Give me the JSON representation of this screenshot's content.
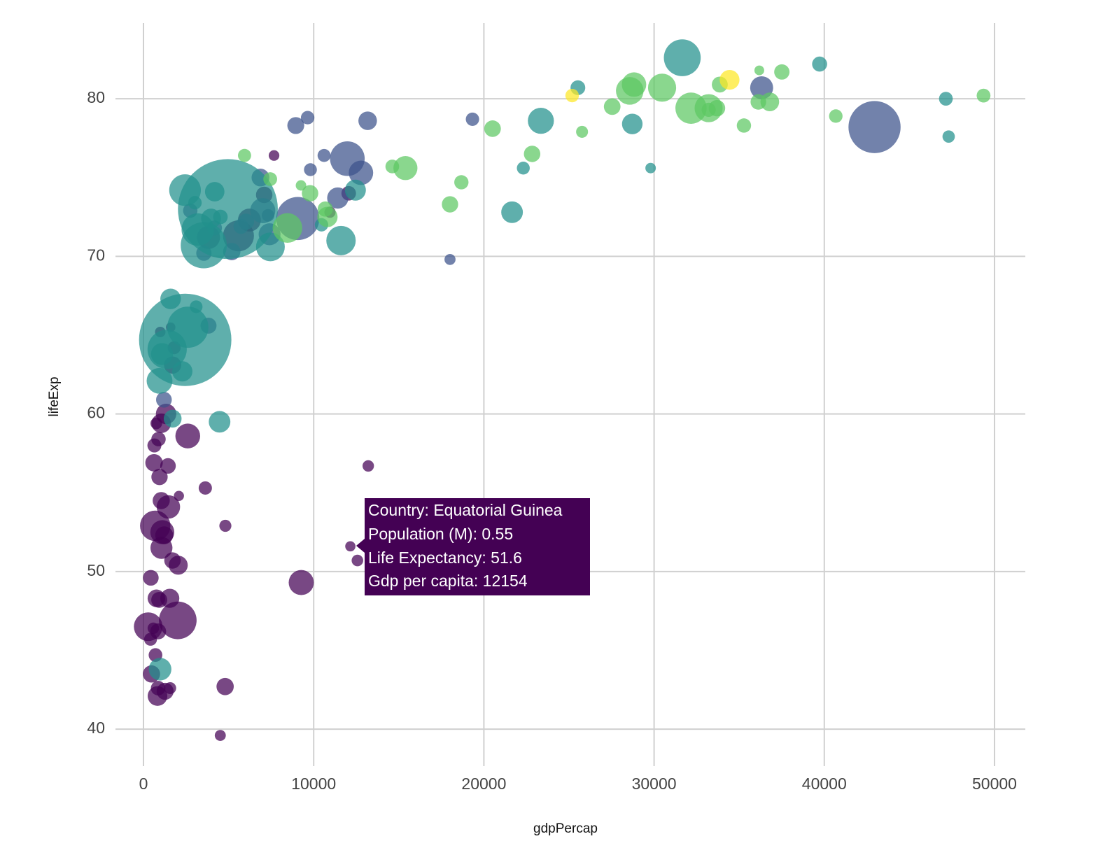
{
  "chart_data": {
    "type": "scatter",
    "xlabel": "gdpPercap",
    "ylabel": "lifeExp",
    "xlim": [
      -1645,
      51810
    ],
    "ylim": [
      37.65,
      84.8
    ],
    "xticks": [
      0,
      10000,
      20000,
      30000,
      40000,
      50000
    ],
    "yticks": [
      40,
      50,
      60,
      70,
      80
    ],
    "grid": true,
    "series": [
      {
        "color": "#440154",
        "x": [
          6223,
          4797,
          1441,
          12570,
          1217,
          430,
          2042,
          706,
          1704,
          986,
          278,
          3633,
          1545,
          2082,
          5581,
          12154,
          641,
          691,
          13206,
          753,
          1328,
          943,
          579,
          1463,
          1569,
          415,
          12057,
          1045,
          759,
          1043,
          1803,
          10957,
          3820,
          824,
          4811,
          620,
          2014,
          7670,
          863,
          1598,
          1712,
          863,
          926,
          9270,
          2602,
          4513,
          1107,
          883,
          7093,
          1056,
          1271,
          470
        ],
        "values": [
          72.3,
          42.7,
          56.7,
          50.7,
          52.3,
          49.6,
          50.4,
          44.7,
          50.7,
          65.2,
          46.5,
          55.3,
          48.3,
          54.8,
          71.3,
          51.6,
          58.0,
          52.9,
          56.7,
          59.4,
          60.0,
          56.0,
          46.4,
          54.1,
          42.6,
          45.7,
          74.0,
          59.4,
          48.3,
          54.5,
          64.2,
          72.8,
          71.2,
          42.1,
          52.9,
          56.9,
          46.9,
          76.4,
          46.2,
          65.5,
          63.1,
          42.6,
          48.2,
          49.3,
          58.6,
          39.6,
          52.5,
          58.4,
          73.9,
          51.5,
          42.4,
          43.5
        ],
        "sizes": [
          33.3,
          12.4,
          8.1,
          1.6,
          14.3,
          8.4,
          17.7,
          4.4,
          10.2,
          0.7,
          64.6,
          3.8,
          18.0,
          0.5,
          80.3,
          0.55,
          4.9,
          76.5,
          1.45,
          1.7,
          22.9,
          9.9,
          1.5,
          35.6,
          2.0,
          3.2,
          6.0,
          19.2,
          13.3,
          12.0,
          3.3,
          1.25,
          33.8,
          20.0,
          2.1,
          12.9,
          135,
          0.8,
          8.9,
          0.2,
          12.3,
          6.1,
          9.1,
          44.0,
          42.3,
          1.1,
          38.1,
          5.7,
          10.3,
          29.2,
          11.7,
          12.3
        ]
      },
      {
        "color": "#3b528b",
        "x": [
          12779,
          3822,
          9066,
          36319,
          13172,
          7007,
          9645,
          8948,
          6025,
          6873,
          5728,
          5186,
          1202,
          3548,
          7321,
          11978,
          2749,
          9809,
          4173,
          7409,
          19329,
          18009,
          42952,
          10611,
          11416
        ],
        "values": [
          75.3,
          65.6,
          72.4,
          80.7,
          78.6,
          72.9,
          78.8,
          78.3,
          72.2,
          75.0,
          71.9,
          70.3,
          60.9,
          70.2,
          72.6,
          76.2,
          72.9,
          75.5,
          71.8,
          71.4,
          78.7,
          69.8,
          78.2,
          76.4,
          73.7
        ],
        "sizes": [
          40.3,
          9.1,
          190,
          33.4,
          16.3,
          44.2,
          4.1,
          11.4,
          9.3,
          13.8,
          6.9,
          12.6,
          8.5,
          7.5,
          2.8,
          108.7,
          5.7,
          3.2,
          6.7,
          28.7,
          3.9,
          1.1,
          301,
          3.4,
          26.1
        ]
      },
      {
        "color": "#21908c",
        "x": [
          975,
          29796,
          1391,
          1714,
          4959,
          39725,
          2452,
          3541,
          11606,
          4471,
          25523,
          31656,
          4519,
          1593,
          23348,
          47307,
          10461,
          12452,
          3096,
          944,
          1091,
          22316,
          2606,
          3190,
          21655,
          47143,
          3970,
          4185,
          28718,
          7458,
          2442,
          3025,
          2281
        ],
        "values": [
          43.8,
          75.6,
          64.1,
          59.7,
          73.0,
          82.2,
          64.7,
          70.7,
          71.0,
          59.5,
          80.7,
          82.6,
          72.5,
          67.3,
          78.6,
          77.6,
          72.0,
          74.2,
          66.8,
          62.1,
          63.8,
          75.6,
          65.5,
          71.7,
          72.8,
          80.0,
          72.4,
          74.1,
          78.4,
          70.6,
          74.2,
          73.4,
          62.7
        ],
        "sizes": [
          31.9,
          0.7,
          150,
          14.1,
          1318,
          6.98,
          1110,
          223.5,
          69.5,
          27.5,
          6.4,
          127.5,
          6.05,
          23.3,
          49.0,
          2.5,
          3.9,
          24.8,
          2.9,
          47.8,
          28.9,
          3.2,
          169,
          91.1,
          27.6,
          4.55,
          20.4,
          19.3,
          23.2,
          65.1,
          85.3,
          4.0,
          22.2
        ]
      },
      {
        "color": "#5dc863",
        "x": [
          5937,
          36126,
          33693,
          7446,
          10681,
          14619,
          22833,
          35278,
          33207,
          30470,
          32170,
          27538,
          18009,
          36181,
          40676,
          28570,
          9254,
          36798,
          49357,
          15390,
          20510,
          10808,
          9787,
          18678,
          25768,
          28821,
          33860,
          37506,
          8458,
          33203
        ],
        "values": [
          76.4,
          79.8,
          79.4,
          74.9,
          73.0,
          75.7,
          76.5,
          78.3,
          79.3,
          80.7,
          79.4,
          79.5,
          73.3,
          81.8,
          78.9,
          80.5,
          74.5,
          79.8,
          80.2,
          75.6,
          78.1,
          72.5,
          74.0,
          74.7,
          77.9,
          80.9,
          80.9,
          81.7,
          71.8,
          79.4
        ],
        "sizes": [
          3.6,
          8.2,
          10.4,
          4.6,
          7.3,
          4.5,
          10.2,
          5.5,
          5.2,
          61.1,
          82.4,
          10.7,
          9.96,
          0.3,
          4.1,
          58.1,
          0.7,
          16.6,
          4.6,
          38.5,
          10.6,
          22.3,
          10.2,
          5.4,
          2.0,
          40.4,
          9.0,
          7.6,
          71.2,
          60.8
        ]
      },
      {
        "color": "#fde725",
        "x": [
          34435,
          25185
        ],
        "values": [
          81.2,
          80.2
        ],
        "sizes": [
          20.4,
          4.1
        ]
      }
    ]
  },
  "tooltip": {
    "lines": [
      "Country: Equatorial Guinea",
      "Population (M): 0.55",
      "Life Expectancy: 51.6",
      "Gdp per capita: 12154"
    ]
  }
}
